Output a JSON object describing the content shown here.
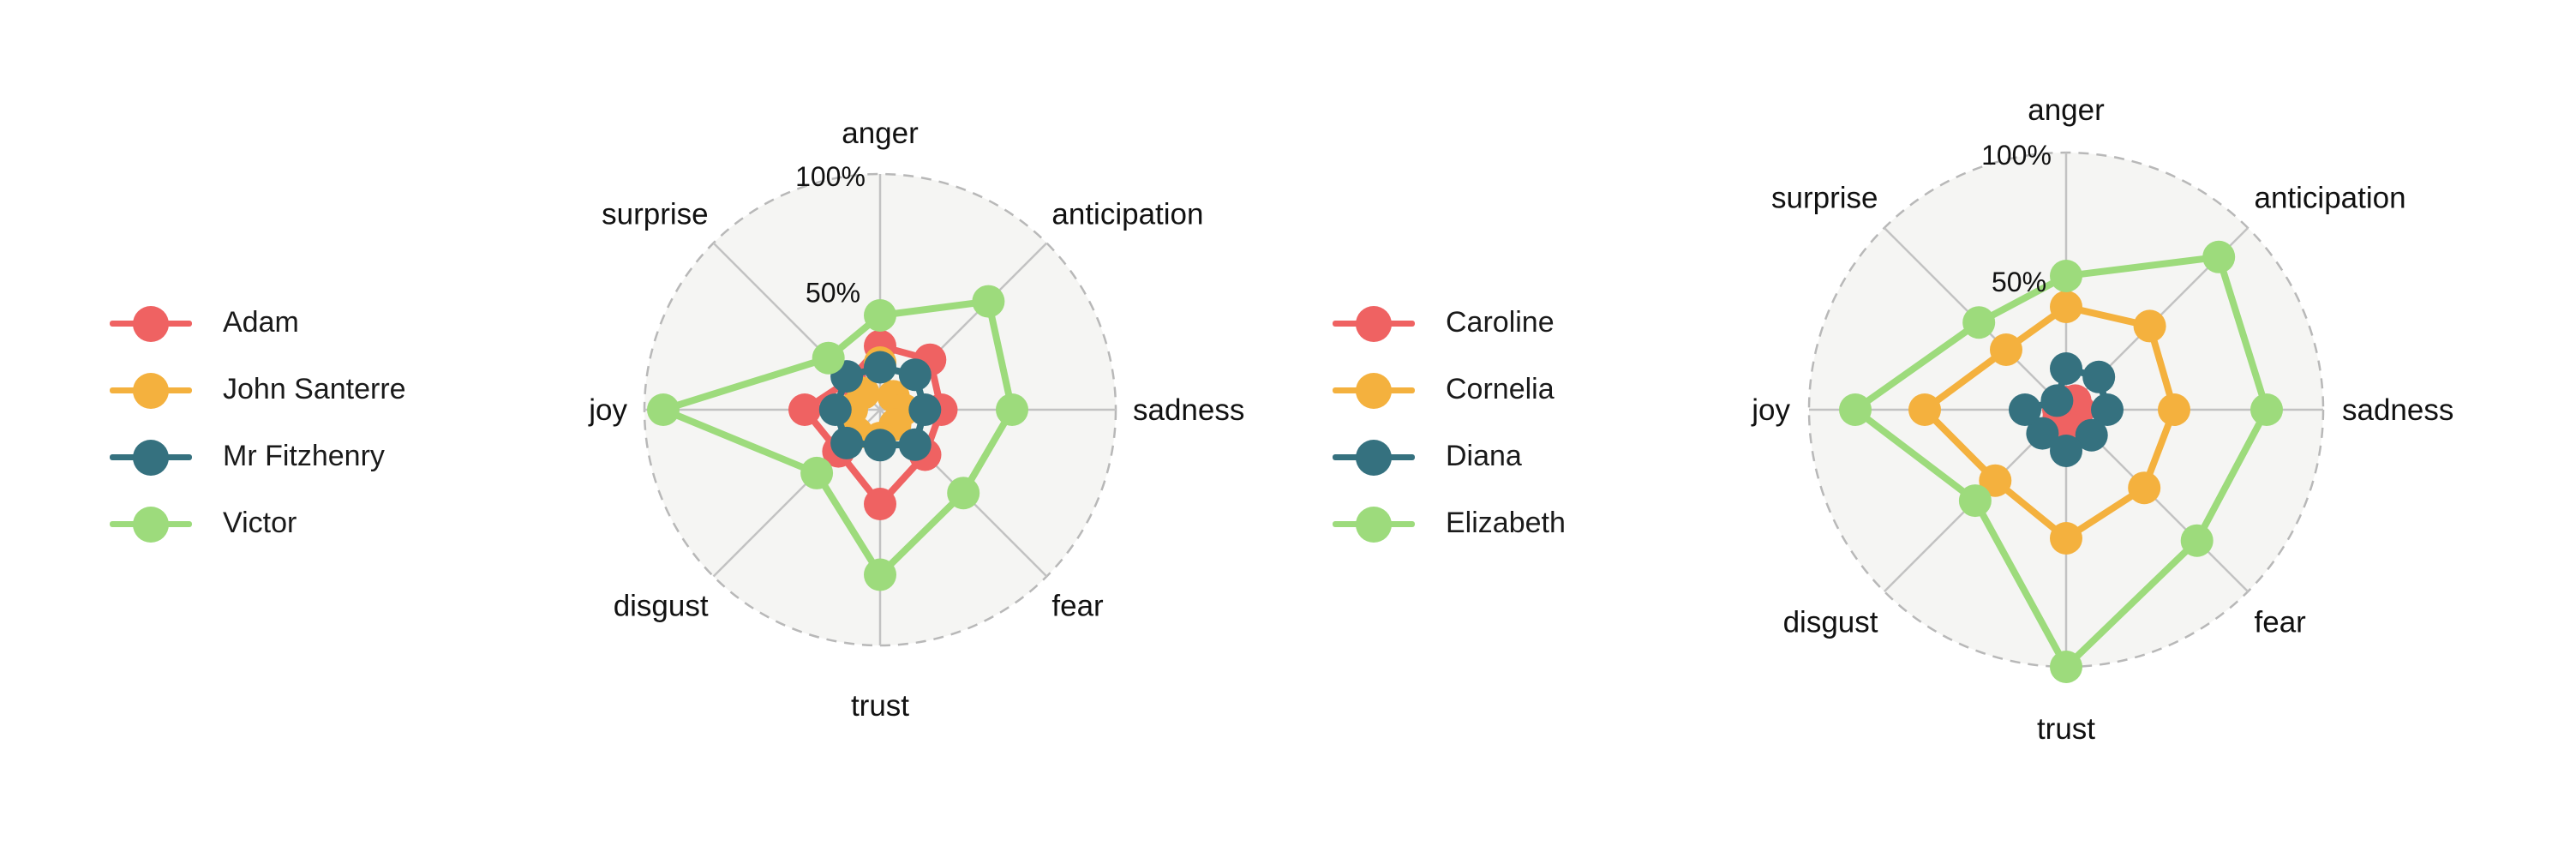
{
  "colors": {
    "red": "#ef6262",
    "orange": "#f4b13e",
    "teal": "#35717f",
    "green": "#9ddb7c",
    "background": "#f5f5f3",
    "grid": "#c2c2c2",
    "frame": "#b8b8b8"
  },
  "chart_data": [
    {
      "type": "radar",
      "axes": [
        "anger",
        "anticipation",
        "sadness",
        "fear",
        "trust",
        "disgust",
        "joy",
        "surprise"
      ],
      "rlim": [
        0,
        100
      ],
      "r_ticks": [
        "50%",
        "100%"
      ],
      "legend_position": "left",
      "series": [
        {
          "name": "Adam",
          "color": "#ef6262",
          "values": [
            27,
            30,
            26,
            27,
            40,
            25,
            32,
            18
          ]
        },
        {
          "name": "John Santerre",
          "color": "#f4b13e",
          "values": [
            20,
            8,
            10,
            9,
            12,
            14,
            12,
            10
          ]
        },
        {
          "name": "Mr Fitzhenry",
          "color": "#35717f",
          "values": [
            18,
            21,
            19,
            21,
            15,
            20,
            19,
            20
          ]
        },
        {
          "name": "Victor",
          "color": "#9ddb7c",
          "values": [
            40,
            65,
            56,
            50,
            70,
            38,
            92,
            31
          ]
        }
      ]
    },
    {
      "type": "radar",
      "axes": [
        "anger",
        "anticipation",
        "sadness",
        "fear",
        "trust",
        "disgust",
        "joy",
        "surprise"
      ],
      "rlim": [
        0,
        100
      ],
      "r_ticks": [
        "50%",
        "100%"
      ],
      "legend_position": "left",
      "series": [
        {
          "name": "Caroline",
          "color": "#ef6262",
          "values": [
            3,
            5,
            5,
            4,
            6,
            4,
            3,
            4
          ]
        },
        {
          "name": "Cornelia",
          "color": "#f4b13e",
          "values": [
            40,
            46,
            42,
            43,
            50,
            39,
            55,
            33
          ]
        },
        {
          "name": "Diana",
          "color": "#35717f",
          "values": [
            16,
            18,
            16,
            14,
            16,
            13,
            16,
            5
          ]
        },
        {
          "name": "Elizabeth",
          "color": "#9ddb7c",
          "values": [
            52,
            84,
            78,
            72,
            100,
            50,
            82,
            48
          ]
        }
      ]
    }
  ]
}
